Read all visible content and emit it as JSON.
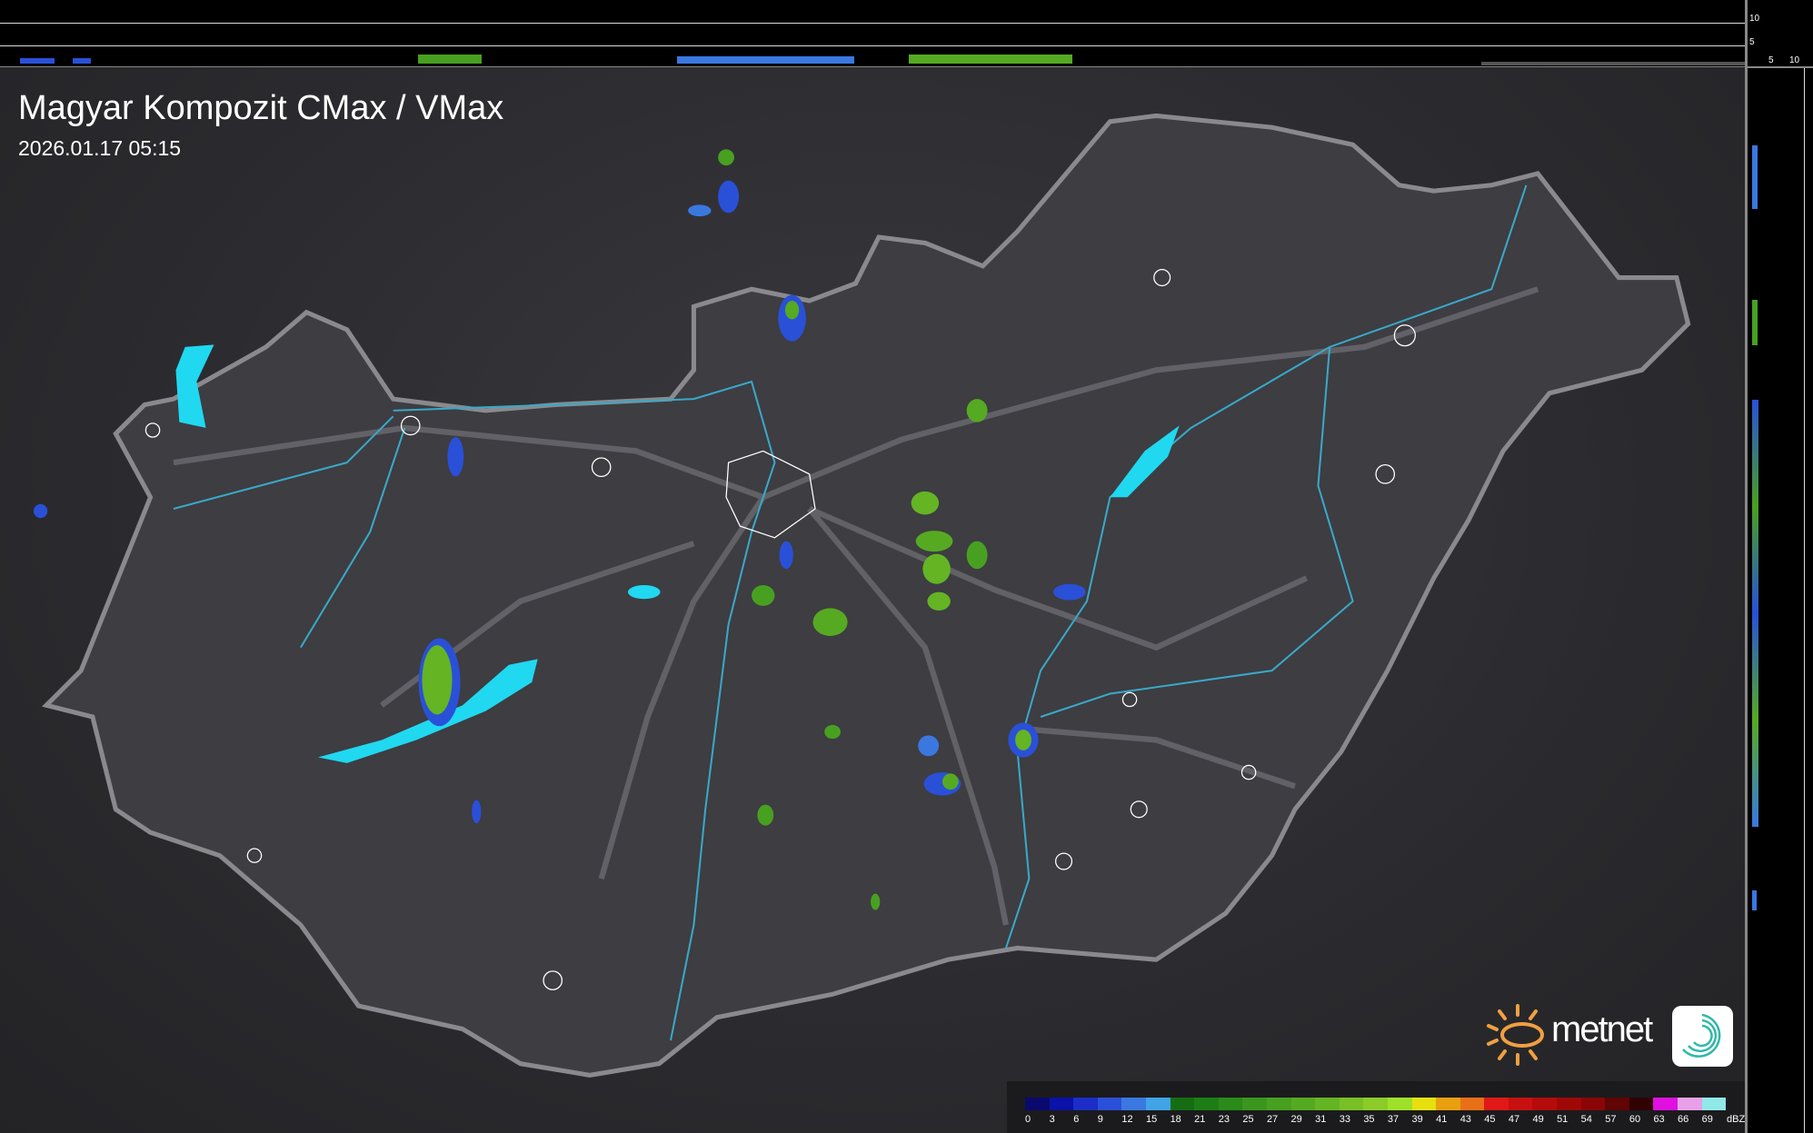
{
  "header": {
    "title": "Magyar Kompozit CMax / VMax",
    "timestamp": "2026.01.17 05:15"
  },
  "profile_axes": {
    "top_ticks": [
      "10",
      "5"
    ],
    "right_ticks": [
      "5",
      "10"
    ]
  },
  "logo": {
    "brand": "metnet"
  },
  "legend": {
    "unit": "dBZ",
    "labels": [
      "0",
      "3",
      "6",
      "9",
      "12",
      "15",
      "18",
      "21",
      "23",
      "25",
      "27",
      "29",
      "31",
      "33",
      "35",
      "37",
      "39",
      "41",
      "43",
      "45",
      "47",
      "49",
      "51",
      "54",
      "57",
      "60",
      "63",
      "66",
      "69"
    ],
    "colors": [
      "#0a0a6e",
      "#0a12a8",
      "#1c2dc8",
      "#2a50d8",
      "#3a78e0",
      "#40a4e6",
      "#156e14",
      "#1e7e16",
      "#2a8a1a",
      "#3a961e",
      "#48a020",
      "#56aa22",
      "#64b424",
      "#78c026",
      "#8ccc28",
      "#9ee02a",
      "#e6e010",
      "#e8a010",
      "#e87018",
      "#e01818",
      "#c81010",
      "#b40c0c",
      "#a00808",
      "#8a0606",
      "#600404",
      "#300202",
      "#e010e0",
      "#e8a0e8",
      "#90e8e8"
    ]
  },
  "colors": {
    "border": "#8a8a8e",
    "rivers": "#3aa8c8",
    "lakes": "#20d8f0"
  }
}
